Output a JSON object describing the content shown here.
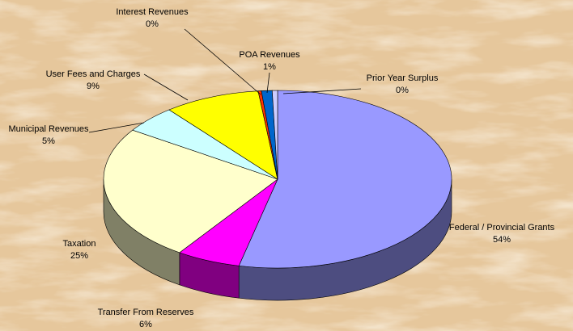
{
  "chart_data": {
    "type": "pie3d",
    "categories": [
      "Federal / Provincial Grants",
      "Transfer From Reserves",
      "Taxation",
      "Municipal Revenues",
      "User Fees and Charges",
      "Interest Revenues",
      "POA Revenues",
      "Prior Year Surplus"
    ],
    "values": [
      54,
      6,
      25,
      5,
      9,
      0.3,
      1,
      0.5
    ],
    "value_labels": [
      "54%",
      "6%",
      "25%",
      "5%",
      "9%",
      "0%",
      "1%",
      "0%"
    ],
    "colors": [
      "#9999ff",
      "#ff00ff",
      "#ffffcc",
      "#ccffff",
      "#ffff00",
      "#ff3300",
      "#0066cc",
      "#ccccff"
    ]
  }
}
